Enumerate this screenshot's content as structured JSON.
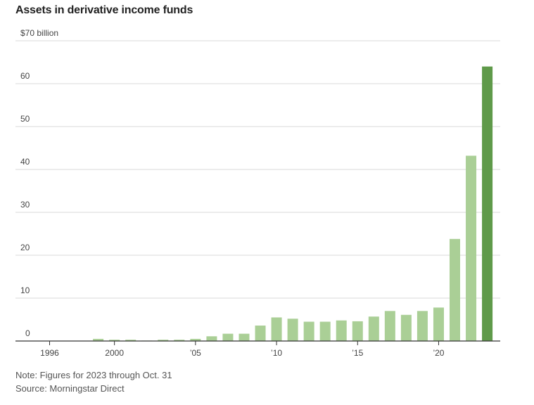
{
  "chart_data": {
    "type": "bar",
    "title": "Assets in derivative income funds",
    "ylabel": "$70 billion",
    "ylim": [
      0,
      70
    ],
    "y_ticks": [
      {
        "value": 0,
        "label": "0"
      },
      {
        "value": 10,
        "label": "10"
      },
      {
        "value": 20,
        "label": "20"
      },
      {
        "value": 30,
        "label": "30"
      },
      {
        "value": 40,
        "label": "40"
      },
      {
        "value": 50,
        "label": "50"
      },
      {
        "value": 60,
        "label": "60"
      },
      {
        "value": 70,
        "label": "$70 billion"
      }
    ],
    "x_ticks": [
      {
        "year": 1996,
        "label": "1996"
      },
      {
        "year": 2000,
        "label": "2000"
      },
      {
        "year": 2005,
        "label": "’05"
      },
      {
        "year": 2010,
        "label": "’10"
      },
      {
        "year": 2015,
        "label": "’15"
      },
      {
        "year": 2020,
        "label": "’20"
      }
    ],
    "categories": [
      1996,
      1997,
      1998,
      1999,
      2000,
      2001,
      2002,
      2003,
      2004,
      2005,
      2006,
      2007,
      2008,
      2009,
      2010,
      2011,
      2012,
      2013,
      2014,
      2015,
      2016,
      2017,
      2018,
      2019,
      2020,
      2021,
      2022,
      2023
    ],
    "values": [
      0,
      0,
      0,
      0.5,
      0.3,
      0.3,
      0.1,
      0.3,
      0.3,
      0.5,
      1.1,
      1.7,
      1.7,
      3.6,
      5.5,
      5.2,
      4.5,
      4.5,
      4.8,
      4.6,
      5.7,
      7.0,
      6.1,
      7.0,
      7.8,
      23.8,
      43.2,
      64.0
    ],
    "highlight_category": 2023,
    "bar_color": "#aacf96",
    "highlight_color": "#5f9a4a",
    "grid_color": "#d9d9d9",
    "axis_color": "#333333"
  },
  "notes": {
    "note": "Note: Figures for 2023 through Oct. 31",
    "source": "Source: Morningstar Direct"
  }
}
